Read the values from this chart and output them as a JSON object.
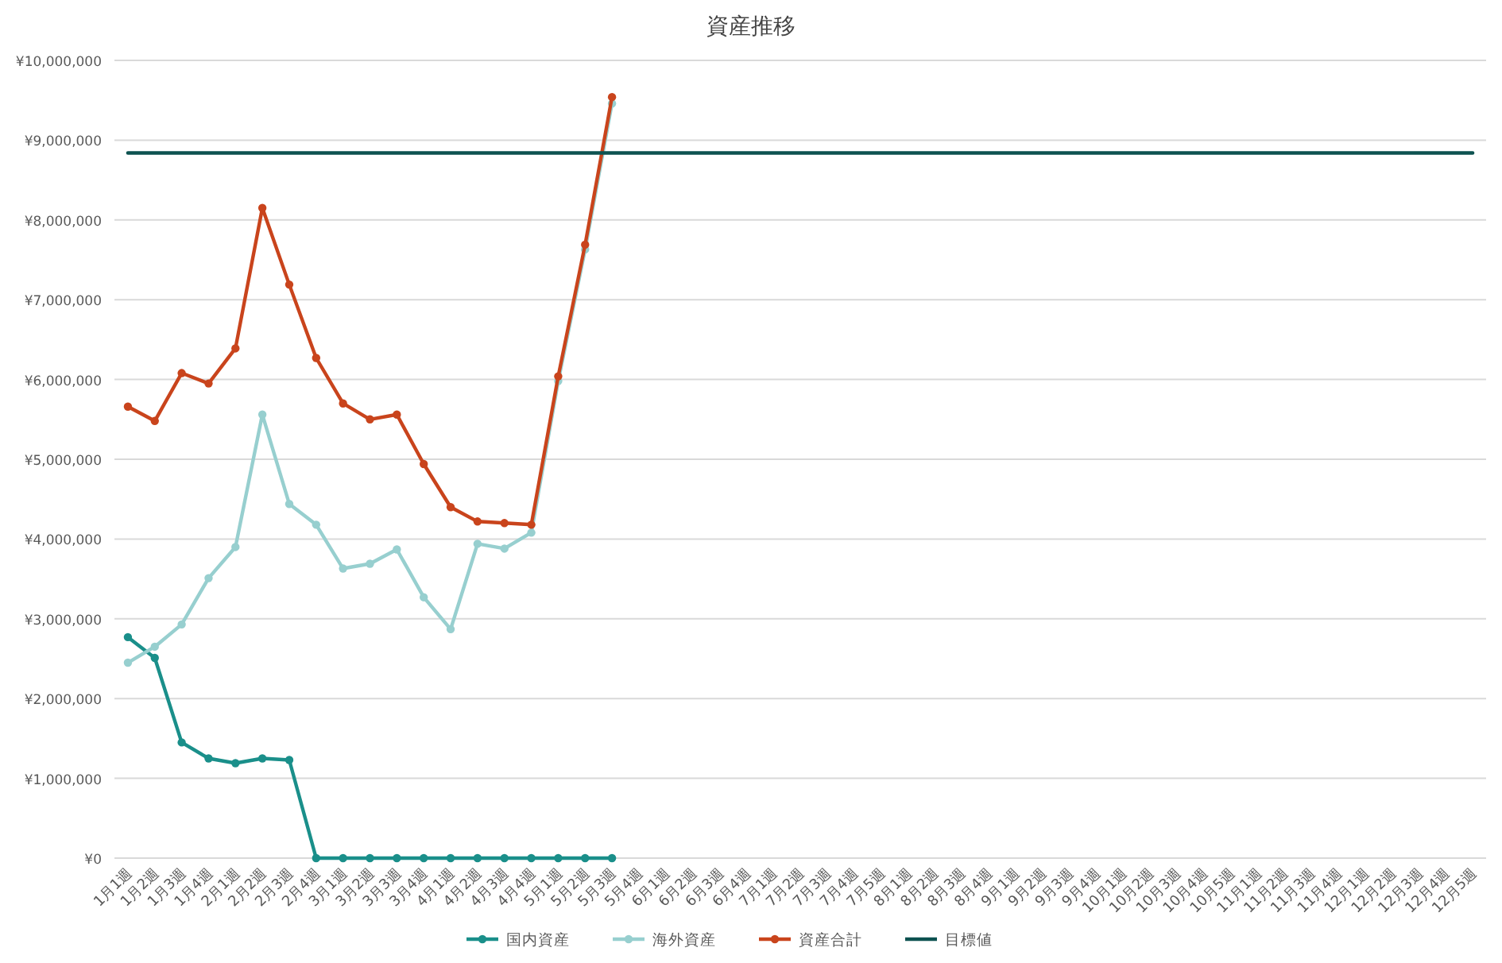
{
  "chart_data": {
    "type": "line",
    "title": "資産推移",
    "categories": [
      "1月1週",
      "1月2週",
      "1月3週",
      "1月4週",
      "2月1週",
      "2月2週",
      "2月3週",
      "2月4週",
      "3月1週",
      "3月2週",
      "3月3週",
      "3月4週",
      "4月1週",
      "4月2週",
      "4月3週",
      "4月4週",
      "5月1週",
      "5月2週",
      "5月3週",
      "5月4週",
      "6月1週",
      "6月2週",
      "6月3週",
      "6月4週",
      "7月1週",
      "7月2週",
      "7月3週",
      "7月4週",
      "7月5週",
      "8月1週",
      "8月2週",
      "8月3週",
      "8月4週",
      "9月1週",
      "9月2週",
      "9月3週",
      "9月4週",
      "10月1週",
      "10月2週",
      "10月3週",
      "10月4週",
      "10月5週",
      "11月1週",
      "11月2週",
      "11月3週",
      "11月4週",
      "12月1週",
      "12月2週",
      "12月3週",
      "12月4週",
      "12月5週"
    ],
    "series": [
      {
        "name": "国内資産",
        "color": "#1a8f8a",
        "marker": "circle",
        "values": [
          2770000,
          2510000,
          1450000,
          1250000,
          1190000,
          1250000,
          1230000,
          0,
          0,
          0,
          0,
          0,
          0,
          0,
          0,
          0,
          0,
          0,
          0,
          null,
          null,
          null,
          null,
          null,
          null,
          null,
          null,
          null,
          null,
          null,
          null,
          null,
          null,
          null,
          null,
          null,
          null,
          null,
          null,
          null,
          null,
          null,
          null,
          null,
          null,
          null,
          null,
          null,
          null,
          null,
          null
        ]
      },
      {
        "name": "海外資産",
        "color": "#97cfcf",
        "marker": "circle",
        "values": [
          2450000,
          2650000,
          2930000,
          3510000,
          3900000,
          5560000,
          4440000,
          4180000,
          3630000,
          3690000,
          3870000,
          3270000,
          2870000,
          3940000,
          3880000,
          4080000,
          5980000,
          7630000,
          9460000,
          null,
          null,
          null,
          null,
          null,
          null,
          null,
          null,
          null,
          null,
          null,
          null,
          null,
          null,
          null,
          null,
          null,
          null,
          null,
          null,
          null,
          null,
          null,
          null,
          null,
          null,
          null,
          null,
          null,
          null,
          null,
          null
        ]
      },
      {
        "name": "資産合計",
        "color": "#c9441c",
        "marker": "circle",
        "values": [
          5660000,
          5480000,
          6080000,
          5950000,
          6390000,
          8150000,
          7190000,
          6270000,
          5700000,
          5500000,
          5560000,
          4940000,
          4400000,
          4220000,
          4200000,
          4180000,
          6040000,
          7690000,
          9540000,
          null,
          null,
          null,
          null,
          null,
          null,
          null,
          null,
          null,
          null,
          null,
          null,
          null,
          null,
          null,
          null,
          null,
          null,
          null,
          null,
          null,
          null,
          null,
          null,
          null,
          null,
          null,
          null,
          null,
          null,
          null,
          null
        ]
      },
      {
        "name": "目標値",
        "color": "#0d5250",
        "marker": "none",
        "values": [
          8840000,
          8840000,
          8840000,
          8840000,
          8840000,
          8840000,
          8840000,
          8840000,
          8840000,
          8840000,
          8840000,
          8840000,
          8840000,
          8840000,
          8840000,
          8840000,
          8840000,
          8840000,
          8840000,
          8840000,
          8840000,
          8840000,
          8840000,
          8840000,
          8840000,
          8840000,
          8840000,
          8840000,
          8840000,
          8840000,
          8840000,
          8840000,
          8840000,
          8840000,
          8840000,
          8840000,
          8840000,
          8840000,
          8840000,
          8840000,
          8840000,
          8840000,
          8840000,
          8840000,
          8840000,
          8840000,
          8840000,
          8840000,
          8840000,
          8840000,
          8840000
        ]
      }
    ],
    "ylim": [
      0,
      10000000
    ],
    "yticks": [
      {
        "value": 0,
        "label": "¥0"
      },
      {
        "value": 1000000,
        "label": "¥1,000,000"
      },
      {
        "value": 2000000,
        "label": "¥2,000,000"
      },
      {
        "value": 3000000,
        "label": "¥3,000,000"
      },
      {
        "value": 4000000,
        "label": "¥4,000,000"
      },
      {
        "value": 5000000,
        "label": "¥5,000,000"
      },
      {
        "value": 6000000,
        "label": "¥6,000,000"
      },
      {
        "value": 7000000,
        "label": "¥7,000,000"
      },
      {
        "value": 8000000,
        "label": "¥8,000,000"
      },
      {
        "value": 9000000,
        "label": "¥9,000,000"
      },
      {
        "value": 10000000,
        "label": "¥10,000,000"
      }
    ],
    "grid": "y",
    "legend": "bottom",
    "line_style": "solid"
  }
}
